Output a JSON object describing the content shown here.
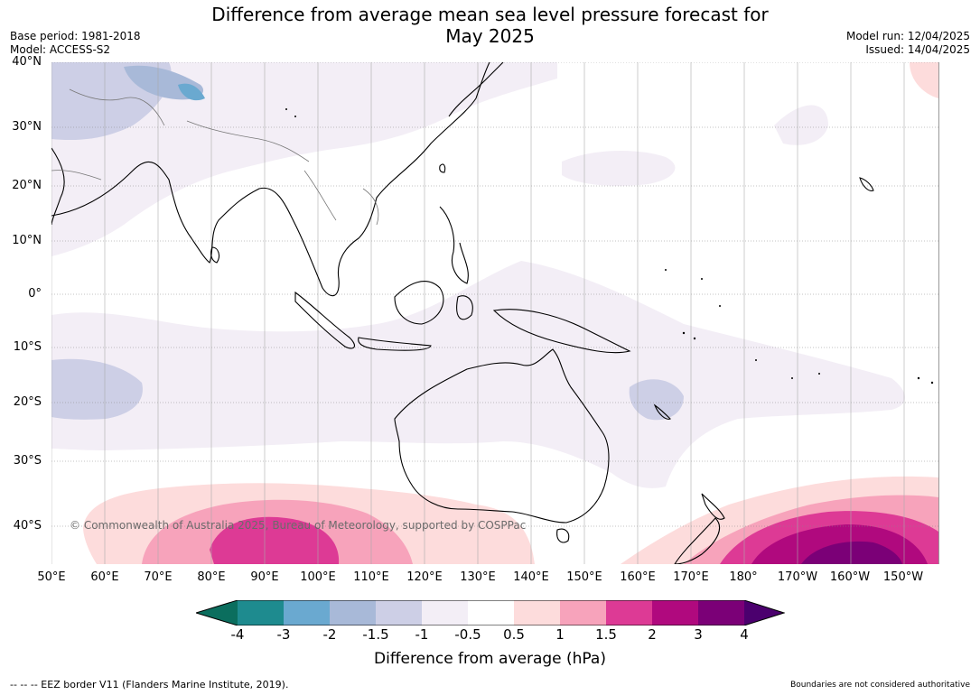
{
  "title_line1": "Difference from average mean sea level pressure forecast for",
  "title_line2": "May 2025",
  "meta_left": {
    "base_period": "Base period: 1981-2018",
    "model": "Model: ACCESS-S2"
  },
  "meta_right": {
    "model_run": "Model run: 12/04/2025",
    "issued": "Issued: 14/04/2025"
  },
  "lat_labels": [
    "40°N",
    "30°N",
    "20°N",
    "10°N",
    "0°",
    "10°S",
    "20°S",
    "30°S",
    "40°S"
  ],
  "lon_labels": [
    "50°E",
    "60°E",
    "70°E",
    "80°E",
    "90°E",
    "100°E",
    "110°E",
    "120°E",
    "130°E",
    "140°E",
    "150°E",
    "160°E",
    "170°E",
    "180°",
    "170°W",
    "160°W",
    "150°W"
  ],
  "copyright": "© Commonwealth of Australia 2025, Bureau of Meteorology, supported by COSPPac",
  "colorbar": {
    "ticks": [
      "-4",
      "-3",
      "-2",
      "-1.5",
      "-1",
      "-0.5",
      "0.5",
      "1",
      "1.5",
      "2",
      "3",
      "4"
    ],
    "colors": [
      "#1e8b8f",
      "#6aa9d0",
      "#a8b9d8",
      "#cdcfe6",
      "#f3eef6",
      "#ffffff",
      "#fddcdc",
      "#f7a3bb",
      "#dd3a95",
      "#b0097e",
      "#7b0077"
    ],
    "under_color": "#0b6e5e",
    "over_color": "#4b006e",
    "label": "Difference from average (hPa)"
  },
  "footer_left": "--  --  -- EEZ border V11 (Flanders Marine Institute, 2019).",
  "footer_right": "Boundaries are not considered authoritative"
}
